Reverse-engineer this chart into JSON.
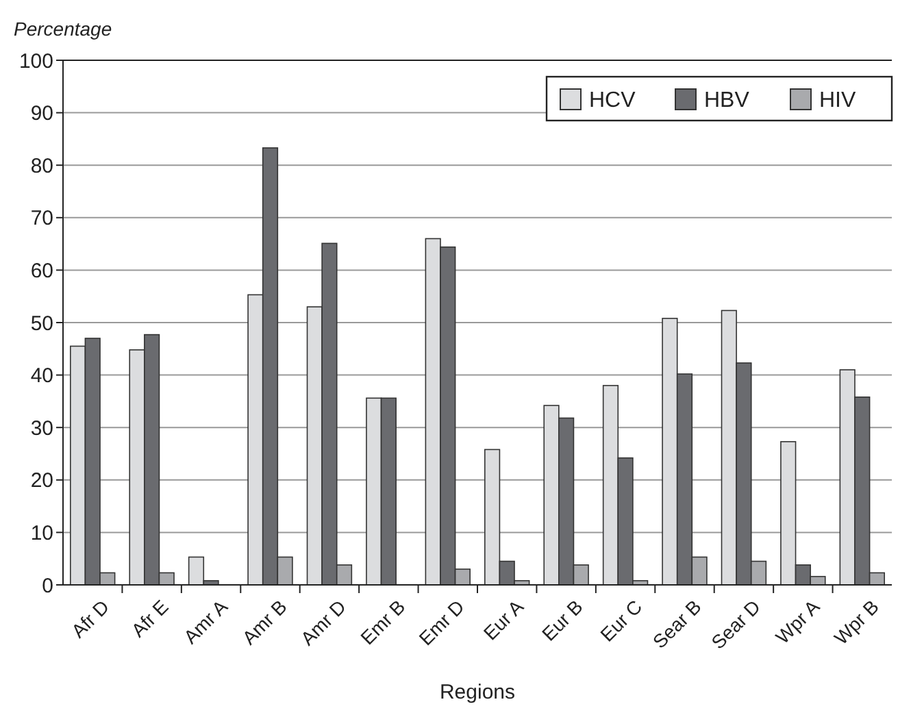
{
  "chart_data": {
    "type": "bar",
    "ylabel": "Percentage",
    "xlabel": "Regions",
    "categories": [
      "Afr D",
      "Afr E",
      "Amr A",
      "Amr B",
      "Amr D",
      "Emr B",
      "Emr D",
      "Eur A",
      "Eur B",
      "Eur C",
      "Sear B",
      "Sear D",
      "Wpr A",
      "Wpr B"
    ],
    "series": [
      {
        "name": "HCV",
        "color": "#dcdddf",
        "values": [
          45.5,
          44.8,
          5.3,
          55.3,
          53,
          35.6,
          66,
          25.8,
          34.2,
          38,
          50.8,
          52.3,
          27.3,
          41
        ]
      },
      {
        "name": "HBV",
        "color": "#6a6b6f",
        "values": [
          47,
          47.7,
          0.8,
          83.3,
          65.1,
          35.6,
          64.4,
          4.5,
          31.8,
          24.2,
          40.2,
          42.3,
          3.8,
          35.8
        ]
      },
      {
        "name": "HIV",
        "color": "#a9aaad",
        "values": [
          2.3,
          2.3,
          0,
          5.3,
          3.8,
          0,
          3,
          0.8,
          3.8,
          0.8,
          5.3,
          4.5,
          1.6,
          2.3
        ]
      }
    ],
    "ylim": [
      0,
      100
    ],
    "yticks": [
      0,
      10,
      20,
      30,
      40,
      50,
      60,
      70,
      80,
      90,
      100
    ],
    "grid": "y",
    "legend": "top right"
  }
}
